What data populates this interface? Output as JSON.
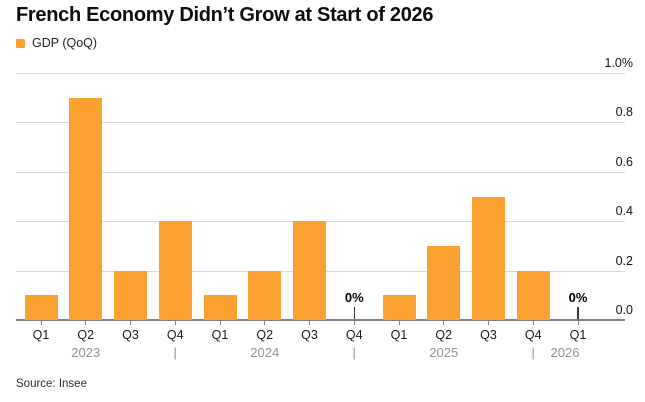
{
  "header": {
    "title": "French Economy Didn’t Grow at Start of 2026",
    "legend_label": "GDP (QoQ)"
  },
  "source": "Source: Insee",
  "colors": {
    "bar": "#faa12f",
    "gridline": "#dadada",
    "axis": "#818181",
    "title_text": "#0d0d0d",
    "year_text": "#929292"
  },
  "chart_data": {
    "type": "bar",
    "title": "French Economy Didn’t Grow at Start of 2026",
    "series_name": "GDP (QoQ)",
    "categories": [
      "Q1 2023",
      "Q2 2023",
      "Q3 2023",
      "Q4 2023",
      "Q1 2024",
      "Q2 2024",
      "Q3 2024",
      "Q4 2024",
      "Q1 2025",
      "Q2 2025",
      "Q3 2025",
      "Q4 2025",
      "Q1 2026"
    ],
    "quarter_labels": [
      "Q1",
      "Q2",
      "Q3",
      "Q4",
      "Q1",
      "Q2",
      "Q3",
      "Q4",
      "Q1",
      "Q2",
      "Q3",
      "Q4",
      "Q1"
    ],
    "values": [
      0.1,
      0.9,
      0.2,
      0.4,
      0.1,
      0.2,
      0.4,
      0,
      0.1,
      0.3,
      0.5,
      0.2,
      0
    ],
    "zero_value_label": "0%",
    "years": [
      "2023",
      "2024",
      "2025",
      "2026"
    ],
    "year_separator": "|",
    "y_ticks": [
      {
        "label": "1.0%",
        "value": 1.0
      },
      {
        "label": "0.8",
        "value": 0.8
      },
      {
        "label": "0.6",
        "value": 0.6
      },
      {
        "label": "0.4",
        "value": 0.4
      },
      {
        "label": "0.2",
        "value": 0.2
      },
      {
        "label": "0.0",
        "value": 0.0
      }
    ],
    "ylim": [
      0,
      1.0
    ],
    "xlabel": "",
    "ylabel": "",
    "grid": true,
    "legend_position": "top-left"
  }
}
